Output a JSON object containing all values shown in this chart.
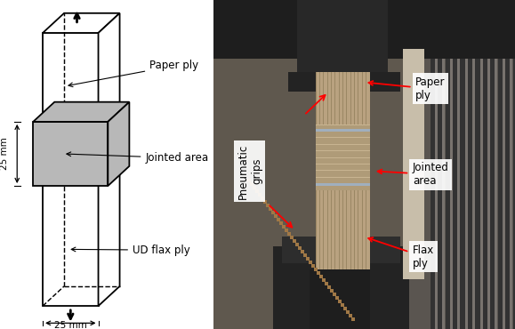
{
  "fig_width": 5.79,
  "fig_height": 3.7,
  "dpi": 100,
  "bg_color": "#ffffff",
  "schematic": {
    "box_edge": "#000000",
    "jointed_fill": "#b8b8b8",
    "label_paper_ply": "Paper ply",
    "label_jointed": "Jointed area",
    "label_ud_flax": "UD flax ply",
    "label_25mm_side": "25 mm",
    "label_25mm_bottom": "25 mm"
  },
  "photo_labels": {
    "pneumatic_grips": "Pneumatic\ngrips",
    "paper_ply": "Paper\nply",
    "jointed_area": "Jointed\narea",
    "flax_ply": "Flax\nply",
    "arrow_color": "#ff0000",
    "label_bg": "#ffffff",
    "text_color": "#000000"
  }
}
